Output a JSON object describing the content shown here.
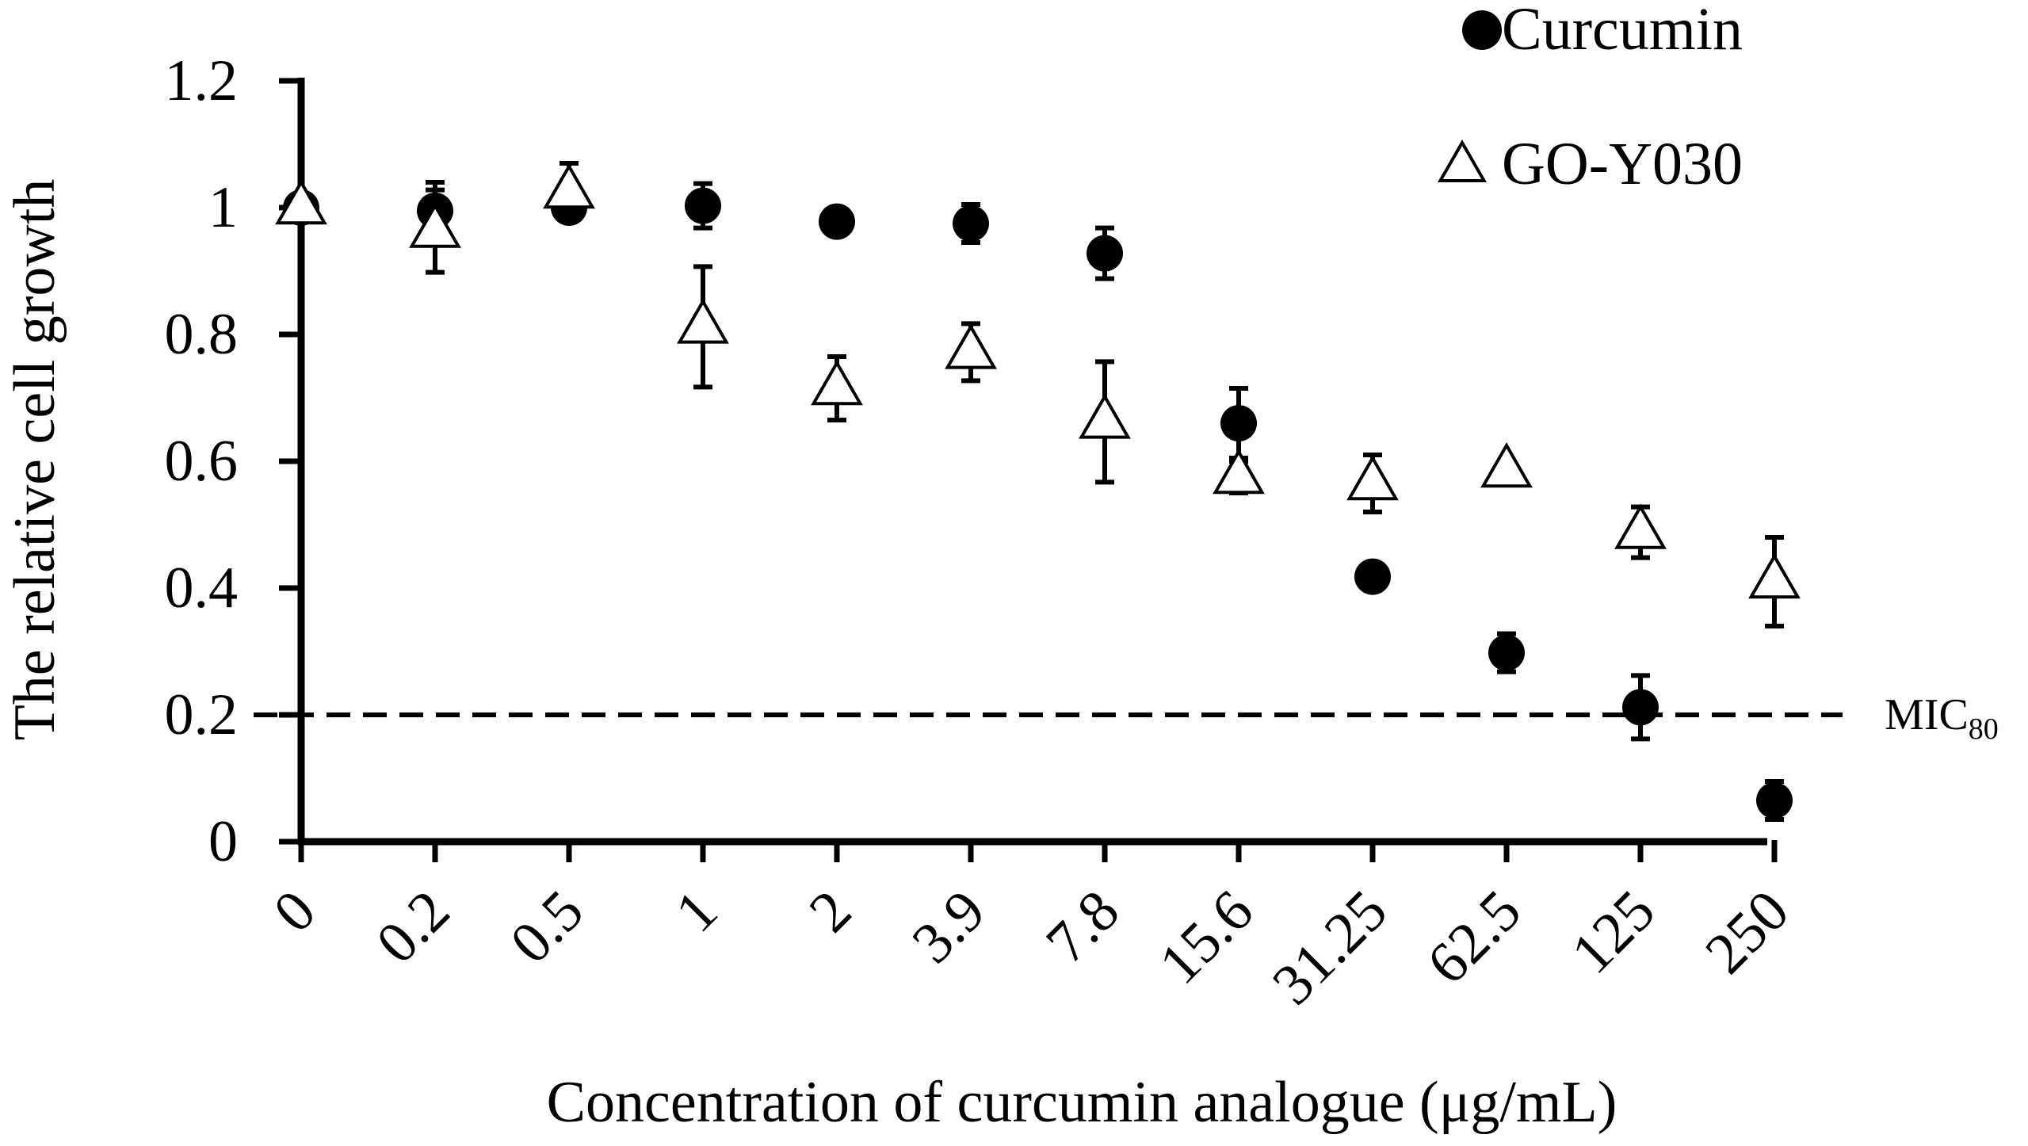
{
  "chart_data": {
    "type": "scatter",
    "categories": [
      "0",
      "0.2",
      "0.5",
      "1",
      "2",
      "3.9",
      "7.8",
      "15.6",
      "31.25",
      "62.5",
      "125",
      "250"
    ],
    "xlabel": "Concentration of curcumin analogue (μg/mL)",
    "ylabel": "The relative cell growth",
    "ylim": [
      0,
      1.2
    ],
    "yticks": [
      "0",
      "0.2",
      "0.4",
      "0.6",
      "0.8",
      "1",
      "1.2"
    ],
    "grid": false,
    "legend_position": "top-right",
    "series": [
      {
        "name": "Curcumin",
        "marker": "filled-circle",
        "color": "#000000",
        "values": [
          1.0,
          0.995,
          1.0,
          1.003,
          0.978,
          0.975,
          0.928,
          0.66,
          0.418,
          0.298,
          0.212,
          0.065
        ],
        "errors": [
          0.0,
          0.045,
          0.02,
          0.035,
          0.0,
          0.03,
          0.04,
          0.055,
          0.0,
          0.03,
          0.05,
          0.03
        ]
      },
      {
        "name": "GO-Y030",
        "marker": "open-triangle",
        "color": "#000000",
        "values": [
          1.0,
          0.963,
          1.025,
          0.812,
          0.715,
          0.772,
          0.662,
          0.575,
          0.565,
          0.585,
          0.488,
          0.41
        ],
        "errors": [
          0.0,
          0.065,
          0.045,
          0.095,
          0.05,
          0.045,
          0.095,
          0.025,
          0.045,
          0.015,
          0.04,
          0.07
        ]
      }
    ],
    "reference_line": {
      "value": 0.2,
      "label": "MIC",
      "label_sub": "80",
      "style": "dashed"
    }
  }
}
